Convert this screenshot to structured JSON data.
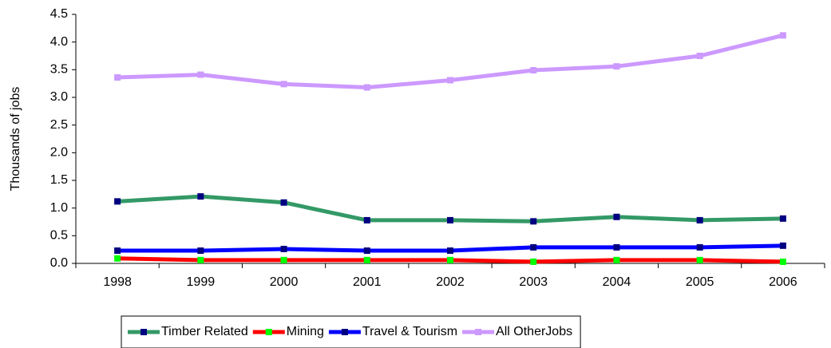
{
  "chart_data": {
    "type": "line",
    "y_label": "Thousands of jobs",
    "categories": [
      "1998",
      "1999",
      "2000",
      "2001",
      "2002",
      "2003",
      "2004",
      "2005",
      "2006"
    ],
    "series": [
      {
        "name": "Timber Related",
        "color": "#339966",
        "marker_color": "#000080",
        "values": [
          1.12,
          1.21,
          1.1,
          0.78,
          0.78,
          0.76,
          0.84,
          0.78,
          0.81
        ]
      },
      {
        "name": "Mining",
        "color": "#ff0000",
        "marker_color": "#00ff00",
        "values": [
          0.09,
          0.06,
          0.06,
          0.06,
          0.06,
          0.03,
          0.06,
          0.06,
          0.03
        ]
      },
      {
        "name": "Travel & Tourism",
        "color": "#0000ff",
        "marker_color": "#000080",
        "values": [
          0.23,
          0.23,
          0.26,
          0.23,
          0.23,
          0.29,
          0.29,
          0.29,
          0.32
        ]
      },
      {
        "name": "All OtherJobs",
        "color": "#cc99ff",
        "marker_color": "#cc99ff",
        "values": [
          3.36,
          3.41,
          3.24,
          3.18,
          3.31,
          3.49,
          3.56,
          3.75,
          4.12
        ]
      }
    ],
    "ylim": [
      0,
      4.5
    ],
    "yticks": [
      {
        "value": 0,
        "label": "0.0"
      },
      0.5,
      {
        "value": 1,
        "label": "1.0"
      },
      1.5,
      {
        "value": 2,
        "label": "2.0"
      },
      2.5,
      {
        "value": 3,
        "label": "3.0"
      },
      3.5,
      {
        "value": 4,
        "label": "4.0"
      },
      4.5
    ],
    "grid": false,
    "legend": "bottom"
  }
}
